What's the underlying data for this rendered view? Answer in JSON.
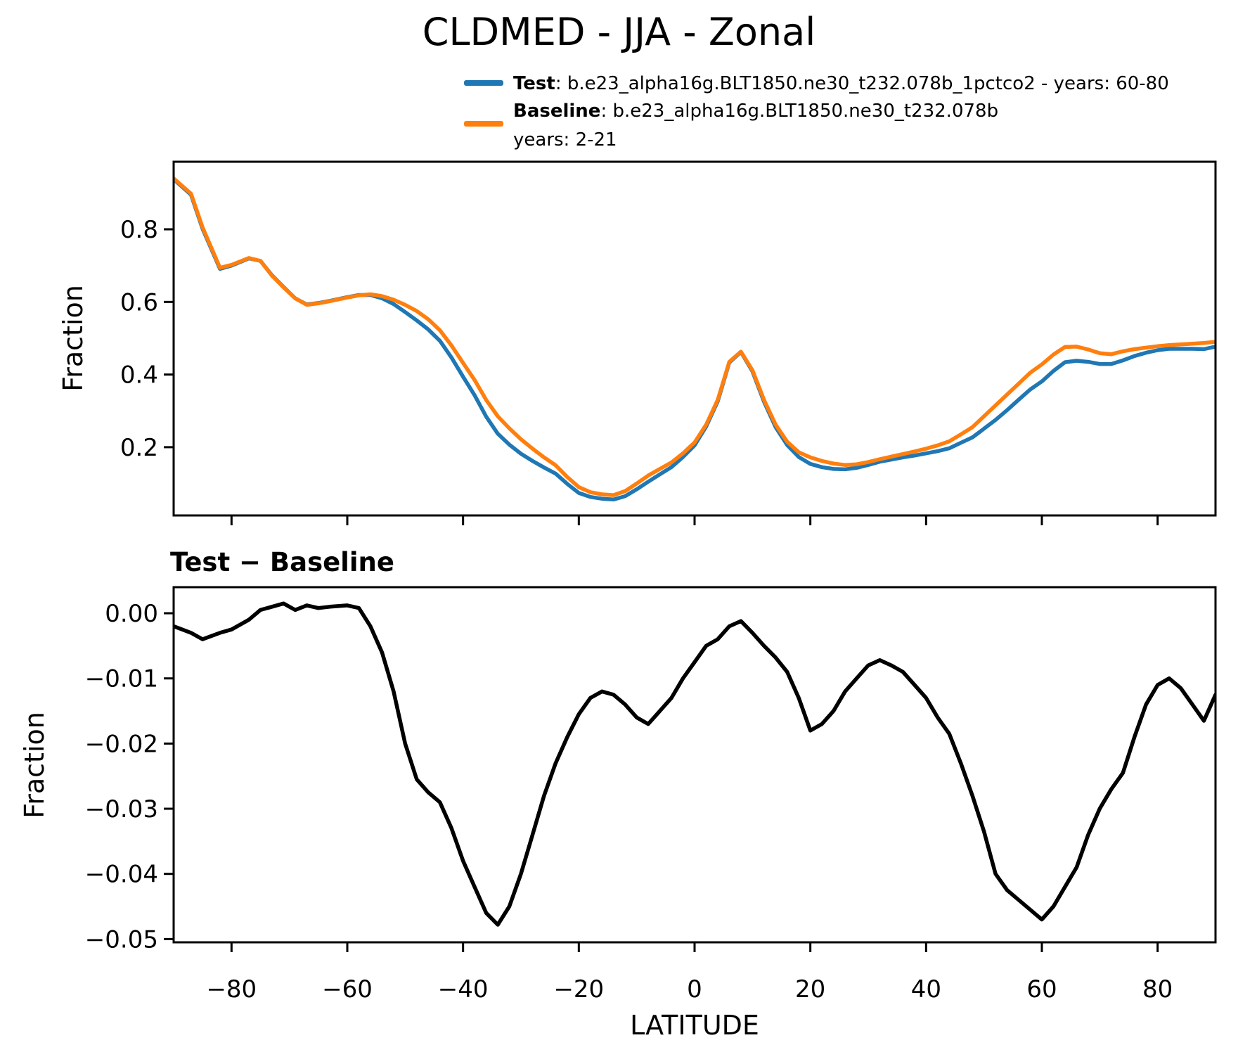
{
  "title": "CLDMED - JJA - Zonal",
  "legend": {
    "test_label": "Test",
    "test_desc": ": b.e23_alpha16g.BLT1850.ne30_t232.078b_1pctco2 - years: 60-80",
    "baseline_label": "Baseline",
    "baseline_desc": ": b.e23_alpha16g.BLT1850.ne30_t232.078b",
    "baseline_years": "years: 2-21",
    "test_color": "#1f77b4",
    "baseline_color": "#ff7f0e"
  },
  "top_panel": {
    "ylabel": "Fraction"
  },
  "bottom_panel": {
    "title": "Test − Baseline",
    "ylabel": "Fraction",
    "xlabel": "LATITUDE"
  },
  "chart_data": [
    {
      "type": "line",
      "title": "CLDMED - JJA - Zonal",
      "xlabel": "",
      "ylabel": "Fraction",
      "xlim": [
        -90,
        90
      ],
      "ylim": [
        0.012,
        0.986
      ],
      "grid": false,
      "legend_position": "top-center-above-axes",
      "xticks": {
        "values": [
          -80,
          -60,
          -40,
          -20,
          0,
          20,
          40,
          60,
          80
        ],
        "labels": []
      },
      "yticks": {
        "values": [
          0.2,
          0.4,
          0.6,
          0.8
        ],
        "labels": [
          "0.2",
          "0.4",
          "0.6",
          "0.8"
        ]
      },
      "x": [
        -90,
        -87,
        -85,
        -82,
        -80,
        -77,
        -75,
        -73,
        -71,
        -69,
        -67,
        -65,
        -63,
        -60,
        -58,
        -56,
        -54,
        -52,
        -50,
        -48,
        -46,
        -44,
        -42,
        -40,
        -38,
        -36,
        -34,
        -32,
        -30,
        -28,
        -26,
        -24,
        -22,
        -20,
        -18,
        -16,
        -14,
        -12,
        -10,
        -8,
        -6,
        -4,
        -2,
        0,
        2,
        4,
        6,
        8,
        10,
        12,
        14,
        16,
        18,
        20,
        22,
        24,
        26,
        28,
        30,
        32,
        34,
        36,
        38,
        40,
        42,
        44,
        46,
        48,
        50,
        52,
        54,
        56,
        58,
        60,
        62,
        64,
        66,
        68,
        70,
        72,
        74,
        76,
        78,
        80,
        82,
        84,
        86,
        88,
        90
      ],
      "series": [
        {
          "name": "Test : b.e23_alpha16g.BLT1850.ne30_t232.078b_1pctco2 - years: 60-80",
          "color": "#1f77b4",
          "values": [
            0.938,
            0.895,
            0.801,
            0.691,
            0.7,
            0.72,
            0.713,
            0.673,
            0.641,
            0.61,
            0.593,
            0.597,
            0.603,
            0.613,
            0.619,
            0.619,
            0.61,
            0.594,
            0.572,
            0.549,
            0.524,
            0.493,
            0.447,
            0.394,
            0.343,
            0.284,
            0.237,
            0.207,
            0.182,
            0.162,
            0.144,
            0.127,
            0.099,
            0.074,
            0.063,
            0.058,
            0.056,
            0.065,
            0.084,
            0.105,
            0.125,
            0.145,
            0.173,
            0.205,
            0.257,
            0.326,
            0.433,
            0.462,
            0.409,
            0.325,
            0.255,
            0.206,
            0.173,
            0.154,
            0.145,
            0.14,
            0.139,
            0.143,
            0.151,
            0.16,
            0.166,
            0.172,
            0.177,
            0.183,
            0.189,
            0.197,
            0.212,
            0.227,
            0.251,
            0.275,
            0.302,
            0.331,
            0.359,
            0.381,
            0.41,
            0.434,
            0.438,
            0.435,
            0.429,
            0.429,
            0.439,
            0.451,
            0.46,
            0.467,
            0.471,
            0.471,
            0.471,
            0.47,
            0.477
          ]
        },
        {
          "name": "Baseline : b.e23_alpha16g.BLT1850.ne30_t232.078b years: 2-21",
          "color": "#ff7f0e",
          "values": [
            0.94,
            0.898,
            0.805,
            0.694,
            0.702,
            0.721,
            0.713,
            0.672,
            0.64,
            0.61,
            0.592,
            0.596,
            0.602,
            0.612,
            0.618,
            0.621,
            0.616,
            0.606,
            0.592,
            0.575,
            0.552,
            0.522,
            0.48,
            0.432,
            0.385,
            0.33,
            0.285,
            0.252,
            0.222,
            0.196,
            0.172,
            0.15,
            0.118,
            0.09,
            0.076,
            0.07,
            0.068,
            0.079,
            0.1,
            0.122,
            0.14,
            0.158,
            0.183,
            0.213,
            0.262,
            0.33,
            0.435,
            0.463,
            0.412,
            0.33,
            0.262,
            0.215,
            0.186,
            0.172,
            0.162,
            0.155,
            0.151,
            0.153,
            0.159,
            0.167,
            0.174,
            0.181,
            0.188,
            0.196,
            0.205,
            0.216,
            0.235,
            0.255,
            0.285,
            0.315,
            0.345,
            0.375,
            0.405,
            0.428,
            0.455,
            0.476,
            0.477,
            0.469,
            0.459,
            0.456,
            0.464,
            0.47,
            0.474,
            0.478,
            0.481,
            0.483,
            0.485,
            0.487,
            0.49
          ]
        }
      ]
    },
    {
      "type": "line",
      "title": "Test − Baseline",
      "xlabel": "LATITUDE",
      "ylabel": "Fraction",
      "xlim": [
        -90,
        90
      ],
      "ylim": [
        -0.0505,
        0.004
      ],
      "grid": false,
      "xticks": {
        "values": [
          -80,
          -60,
          -40,
          -20,
          0,
          20,
          40,
          60,
          80
        ],
        "labels": [
          "−80",
          "−60",
          "−40",
          "−20",
          "0",
          "20",
          "40",
          "60",
          "80"
        ]
      },
      "yticks": {
        "values": [
          0,
          -0.01,
          -0.02,
          -0.03,
          -0.04,
          -0.05
        ],
        "labels": [
          "0.00",
          "−0.01",
          "−0.02",
          "−0.03",
          "−0.04",
          "−0.05"
        ]
      },
      "x": [
        -90,
        -87,
        -85,
        -82,
        -80,
        -77,
        -75,
        -73,
        -71,
        -69,
        -67,
        -65,
        -63,
        -60,
        -58,
        -56,
        -54,
        -52,
        -50,
        -48,
        -46,
        -44,
        -42,
        -40,
        -38,
        -36,
        -34,
        -32,
        -30,
        -28,
        -26,
        -24,
        -22,
        -20,
        -18,
        -16,
        -14,
        -12,
        -10,
        -8,
        -6,
        -4,
        -2,
        0,
        2,
        4,
        6,
        8,
        10,
        12,
        14,
        16,
        18,
        20,
        22,
        24,
        26,
        28,
        30,
        32,
        34,
        36,
        38,
        40,
        42,
        44,
        46,
        48,
        50,
        52,
        54,
        56,
        58,
        60,
        62,
        64,
        66,
        68,
        70,
        72,
        74,
        76,
        78,
        80,
        82,
        84,
        86,
        88,
        90
      ],
      "series": [
        {
          "name": "Test − Baseline",
          "color": "#000000",
          "values": [
            -0.002,
            -0.003,
            -0.004,
            -0.003,
            -0.0025,
            -0.001,
            0.0005,
            0.001,
            0.0015,
            0.0005,
            0.0012,
            0.0008,
            0.001,
            0.0012,
            0.0008,
            -0.002,
            -0.006,
            -0.012,
            -0.02,
            -0.0255,
            -0.0275,
            -0.029,
            -0.033,
            -0.038,
            -0.042,
            -0.046,
            -0.0478,
            -0.045,
            -0.04,
            -0.034,
            -0.028,
            -0.023,
            -0.019,
            -0.0155,
            -0.013,
            -0.012,
            -0.0125,
            -0.014,
            -0.016,
            -0.017,
            -0.015,
            -0.013,
            -0.01,
            -0.0075,
            -0.005,
            -0.004,
            -0.002,
            -0.0012,
            -0.003,
            -0.005,
            -0.0068,
            -0.009,
            -0.013,
            -0.018,
            -0.017,
            -0.015,
            -0.012,
            -0.01,
            -0.008,
            -0.0072,
            -0.008,
            -0.009,
            -0.011,
            -0.013,
            -0.016,
            -0.0185,
            -0.023,
            -0.028,
            -0.0335,
            -0.04,
            -0.0425,
            -0.044,
            -0.0455,
            -0.047,
            -0.045,
            -0.042,
            -0.039,
            -0.034,
            -0.03,
            -0.027,
            -0.0245,
            -0.019,
            -0.014,
            -0.011,
            -0.01,
            -0.0115,
            -0.014,
            -0.0165,
            -0.0125
          ]
        }
      ]
    }
  ]
}
